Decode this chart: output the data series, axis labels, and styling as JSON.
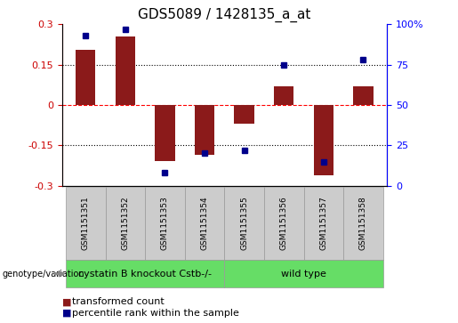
{
  "title": "GDS5089 / 1428135_a_at",
  "samples": [
    "GSM1151351",
    "GSM1151352",
    "GSM1151353",
    "GSM1151354",
    "GSM1151355",
    "GSM1151356",
    "GSM1151357",
    "GSM1151358"
  ],
  "bar_values": [
    0.205,
    0.255,
    -0.21,
    -0.185,
    -0.07,
    0.07,
    -0.26,
    0.07
  ],
  "percentile_values": [
    93,
    97,
    8,
    20,
    22,
    75,
    15,
    78
  ],
  "bar_color": "#8B1A1A",
  "dot_color": "#00008B",
  "ylim_left": [
    -0.3,
    0.3
  ],
  "ylim_right": [
    0,
    100
  ],
  "yticks_left": [
    -0.3,
    -0.15,
    0,
    0.15,
    0.3
  ],
  "yticks_right": [
    0,
    25,
    50,
    75,
    100
  ],
  "hlines": [
    -0.15,
    0.0,
    0.15
  ],
  "hline_styles": [
    "dotted",
    "dashed",
    "dotted"
  ],
  "hline_colors": [
    "black",
    "red",
    "black"
  ],
  "group1_label": "cystatin B knockout Cstb-/-",
  "group2_label": "wild type",
  "group_color": "#66DD66",
  "legend_bar_label": "transformed count",
  "legend_dot_label": "percentile rank within the sample",
  "genotype_label": "genotype/variation",
  "bar_width": 0.5,
  "title_fontsize": 11,
  "tick_fontsize": 8,
  "sample_fontsize": 6.5,
  "group_fontsize": 8,
  "legend_fontsize": 8
}
